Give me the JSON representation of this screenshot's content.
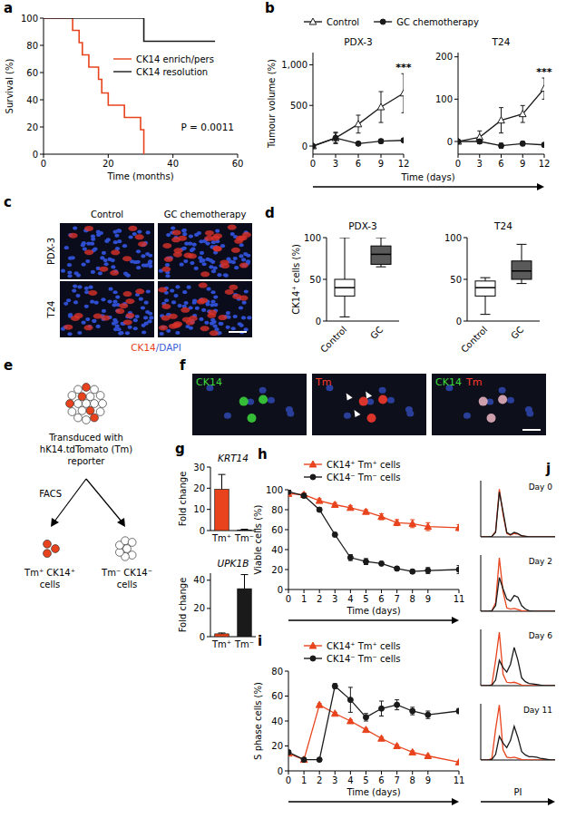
{
  "chart_data": [
    {
      "panel": "a",
      "type": "step",
      "xlabel": "Time (months)",
      "ylabel": "Survival (%)",
      "xlim": [
        0,
        60
      ],
      "xticks": [
        0,
        20,
        40,
        60
      ],
      "ylim": [
        0,
        100
      ],
      "yticks": [
        0,
        20,
        40,
        60,
        80,
        100
      ],
      "legend": "center",
      "annotation": "P = 0.0011",
      "series": [
        {
          "name": "CK14 enrich/pers",
          "color": "#e8431c",
          "x": [
            0,
            9,
            11,
            12,
            14,
            17,
            18,
            20,
            25,
            30,
            31
          ],
          "values": [
            100,
            91,
            82,
            73,
            64,
            55,
            45,
            36,
            27,
            18,
            0
          ]
        },
        {
          "name": "CK14 resolution",
          "color": "#1a1a1a",
          "x": [
            0,
            31,
            53
          ],
          "values": [
            100,
            83,
            83
          ]
        }
      ]
    },
    {
      "panel": "b",
      "type": "line",
      "title": "PDX-3",
      "ylabel": "Tumour volume (%)",
      "xlabel": "Time (days)",
      "x": [
        0,
        3,
        6,
        9,
        12
      ],
      "xlim": [
        0,
        12
      ],
      "xticks": [
        0,
        3,
        6,
        9,
        12
      ],
      "ylim": [
        -100,
        1150
      ],
      "yticks": [
        0,
        500,
        {
          "value": 1000,
          "label": "1,000"
        }
      ],
      "legend": "top",
      "annotation": "***",
      "series": [
        {
          "name": "Control",
          "color": "#1a1a1a",
          "marker": "triangle-open",
          "values": [
            0,
            100,
            270,
            480,
            650
          ],
          "errors": [
            0,
            60,
            110,
            190,
            240
          ]
        },
        {
          "name": "GC chemotherapy",
          "color": "#1a1a1a",
          "marker": "circle",
          "values": [
            0,
            100,
            30,
            60,
            70
          ],
          "errors": [
            0,
            70,
            20,
            25,
            20
          ]
        }
      ]
    },
    {
      "type": "line",
      "title": "T24",
      "x": [
        0,
        3,
        6,
        9,
        12
      ],
      "xlim": [
        0,
        12
      ],
      "xticks": [
        0,
        3,
        6,
        9,
        12
      ],
      "ylim": [
        -30,
        210
      ],
      "yticks": [
        0,
        100,
        200
      ],
      "annotation": "***",
      "series": [
        {
          "color": "#1a1a1a",
          "marker": "triangle-open",
          "values": [
            0,
            10,
            50,
            65,
            125
          ],
          "errors": [
            0,
            15,
            30,
            20,
            25
          ]
        },
        {
          "color": "#1a1a1a",
          "marker": "circle",
          "values": [
            0,
            0,
            -10,
            -5,
            -8
          ],
          "errors": [
            0,
            5,
            6,
            5,
            5
          ]
        }
      ]
    },
    {
      "panel": "d",
      "type": "box",
      "title": "PDX-3",
      "ylabel": "CK14⁺ cells (%)",
      "categories": [
        "Control",
        "GC"
      ],
      "colors": [
        "#ffffff",
        "#5a5a5a"
      ],
      "ylim": [
        0,
        100
      ],
      "yticks": [
        0,
        50,
        100
      ],
      "boxes": [
        {
          "min": 5,
          "q1": 30,
          "median": 40,
          "q3": 50,
          "max": 100
        },
        {
          "min": 65,
          "q1": 68,
          "median": 80,
          "q3": 90,
          "max": 100
        }
      ]
    },
    {
      "type": "box",
      "title": "T24",
      "categories": [
        "Control",
        "GC"
      ],
      "colors": [
        "#ffffff",
        "#5a5a5a"
      ],
      "ylim": [
        0,
        100
      ],
      "yticks": [
        0,
        50,
        100
      ],
      "boxes": [
        {
          "min": 8,
          "q1": 30,
          "median": 40,
          "q3": 48,
          "max": 52
        },
        {
          "min": 45,
          "q1": 50,
          "median": 60,
          "q3": 72,
          "max": 92
        }
      ]
    },
    {
      "panel": "g",
      "type": "bar",
      "title": "KRT14",
      "ylabel": "Fold change",
      "categories": [
        "Tm⁺",
        "Tm⁻"
      ],
      "colors": [
        "#e8431c",
        "#1a1a1a"
      ],
      "values": [
        19.5,
        0.3
      ],
      "errors": [
        7,
        0.3
      ],
      "ylim": [
        0,
        30
      ],
      "yticks": [
        0,
        10,
        20,
        30
      ]
    },
    {
      "type": "bar",
      "title": "UPK1B",
      "ylabel": "Fold change",
      "categories": [
        "Tm⁺",
        "Tm⁻"
      ],
      "colors": [
        "#e8431c",
        "#1a1a1a"
      ],
      "values": [
        2,
        34
      ],
      "errors": [
        0.6,
        10
      ],
      "ylim": [
        0,
        45
      ],
      "yticks": [
        0,
        20,
        40
      ]
    },
    {
      "panel": "h",
      "type": "line",
      "ylabel": "Viable cells (%)",
      "xlabel": "Time (days)",
      "x": [
        0,
        1,
        2,
        3,
        4,
        5,
        6,
        7,
        8,
        9,
        11
      ],
      "xlim": [
        0,
        11
      ],
      "xticks": [
        0,
        1,
        2,
        3,
        4,
        5,
        6,
        7,
        8,
        9,
        11
      ],
      "ylim": [
        0,
        100
      ],
      "yticks": [
        0,
        20,
        40,
        60,
        80,
        100
      ],
      "legend": "top",
      "series": [
        {
          "name": "CK14⁺ Tm⁺ cells",
          "color": "#e8431c",
          "marker": "triangle",
          "values": [
            96,
            95,
            89,
            85,
            82,
            78,
            73,
            67,
            66,
            63,
            62
          ],
          "errors": [
            2,
            2,
            2,
            2,
            2,
            2,
            3,
            3,
            4,
            4,
            3
          ]
        },
        {
          "name": "CK14⁻ Tm⁻ cells",
          "color": "#1a1a1a",
          "marker": "circle",
          "values": [
            98,
            94,
            80,
            55,
            32,
            28,
            26,
            21,
            18,
            19,
            20
          ],
          "errors": [
            2,
            2,
            2,
            2,
            3,
            3,
            2,
            2,
            2,
            3,
            4
          ]
        }
      ]
    },
    {
      "panel": "i",
      "type": "line",
      "ylabel": "S phase cells (%)",
      "xlabel": "Time (days)",
      "x": [
        0,
        1,
        2,
        3,
        4,
        5,
        6,
        7,
        8,
        9,
        11
      ],
      "xlim": [
        0,
        11
      ],
      "xticks": [
        0,
        1,
        2,
        3,
        4,
        5,
        6,
        7,
        8,
        9,
        11
      ],
      "ylim": [
        0,
        80
      ],
      "yticks": [
        0,
        20,
        40,
        60,
        80
      ],
      "legend": "top",
      "series": [
        {
          "name": "CK14⁺ Tm⁺ cells",
          "color": "#e8431c",
          "marker": "triangle",
          "values": [
            14,
            9,
            53,
            46,
            40,
            33,
            26,
            20,
            15,
            12,
            7
          ],
          "errors": [
            1,
            1,
            1,
            1,
            1,
            1,
            1,
            1,
            1,
            1,
            1
          ]
        },
        {
          "name": "CK14⁻ Tm⁻ cells",
          "color": "#1a1a1a",
          "marker": "circle",
          "values": [
            15,
            9,
            9,
            68,
            57,
            43,
            50,
            53,
            48,
            45,
            48
          ],
          "errors": [
            1,
            1,
            1,
            2,
            10,
            3,
            6,
            4,
            3,
            3,
            2
          ]
        }
      ]
    },
    {
      "panel": "j",
      "type": "line",
      "title": "Day 0",
      "x": [
        0,
        5,
        10,
        15,
        20,
        25,
        30,
        35,
        40,
        45,
        50,
        55,
        60,
        65,
        70,
        75,
        80,
        85,
        90,
        95,
        100
      ],
      "xlim": [
        0,
        100
      ],
      "ylim": [
        0,
        100
      ],
      "tick_labels": false,
      "series": [
        {
          "color": "#e8431c",
          "values": [
            0,
            0,
            0,
            1,
            10,
            85,
            40,
            6,
            3,
            6,
            5,
            2,
            1,
            0,
            0,
            0,
            0,
            0,
            0,
            0,
            0
          ]
        },
        {
          "color": "#1a1a1a",
          "values": [
            0,
            0,
            0,
            1,
            8,
            80,
            45,
            8,
            4,
            8,
            6,
            2,
            1,
            0,
            0,
            0,
            0,
            0,
            0,
            0,
            0
          ]
        }
      ]
    },
    {
      "type": "line",
      "title": "Day 2",
      "x": [
        0,
        5,
        10,
        15,
        20,
        25,
        30,
        35,
        40,
        45,
        50,
        55,
        60,
        65,
        70,
        75,
        80,
        85,
        90,
        95,
        100
      ],
      "xlim": [
        0,
        100
      ],
      "ylim": [
        0,
        100
      ],
      "tick_labels": false,
      "series": [
        {
          "color": "#e8431c",
          "values": [
            0,
            0,
            0,
            1,
            15,
            95,
            35,
            6,
            4,
            5,
            3,
            1,
            0,
            0,
            0,
            0,
            0,
            0,
            0,
            0,
            0
          ]
        },
        {
          "color": "#1a1a1a",
          "values": [
            0,
            0,
            0,
            1,
            10,
            60,
            40,
            22,
            18,
            28,
            25,
            10,
            4,
            1,
            0,
            0,
            0,
            0,
            0,
            0,
            0
          ]
        }
      ]
    },
    {
      "type": "line",
      "title": "Day 6",
      "x": [
        0,
        5,
        10,
        15,
        20,
        25,
        30,
        35,
        40,
        45,
        50,
        55,
        60,
        65,
        70,
        75,
        80,
        85,
        90,
        95,
        100
      ],
      "xlim": [
        0,
        100
      ],
      "ylim": [
        0,
        100
      ],
      "tick_labels": false,
      "series": [
        {
          "color": "#e8431c",
          "values": [
            0,
            0,
            0,
            2,
            45,
            95,
            20,
            6,
            5,
            6,
            4,
            1,
            0,
            0,
            0,
            0,
            0,
            0,
            0,
            0,
            0
          ]
        },
        {
          "color": "#1a1a1a",
          "values": [
            0,
            0,
            0,
            1,
            10,
            45,
            32,
            24,
            38,
            68,
            45,
            14,
            7,
            4,
            3,
            2,
            1,
            0,
            0,
            0,
            0
          ]
        }
      ]
    },
    {
      "type": "line",
      "title": "Day 11",
      "xlabel": "PI",
      "x": [
        0,
        5,
        10,
        15,
        20,
        25,
        30,
        35,
        40,
        45,
        50,
        55,
        60,
        65,
        70,
        75,
        80,
        85,
        90,
        95,
        100
      ],
      "xlim": [
        0,
        100
      ],
      "ylim": [
        0,
        100
      ],
      "tick_labels": false,
      "series": [
        {
          "color": "#e8431c",
          "values": [
            0,
            0,
            0,
            3,
            55,
            98,
            18,
            5,
            4,
            5,
            3,
            1,
            0,
            0,
            0,
            0,
            0,
            0,
            0,
            0,
            0
          ]
        },
        {
          "color": "#1a1a1a",
          "values": [
            0,
            0,
            0,
            1,
            10,
            42,
            30,
            22,
            35,
            60,
            40,
            15,
            9,
            6,
            6,
            5,
            3,
            2,
            1,
            0,
            0
          ]
        }
      ]
    }
  ],
  "figure": {
    "c": {
      "panel": "c",
      "columns": [
        "Control",
        "GC chemotherapy"
      ],
      "rows": [
        "PDX-3",
        "T24"
      ],
      "stain": [
        {
          "text": "CK14",
          "color": "#e8431c"
        },
        {
          "text": "/DAPI",
          "color": "#3b5fd6"
        }
      ]
    },
    "e": {
      "panel": "e",
      "source_text": [
        "Transduced with",
        "hK14.tdTomato (Tm)",
        "reporter"
      ],
      "method": "FACS",
      "outputs": [
        {
          "lines": [
            "Tm⁺ CK14⁺",
            "cells"
          ],
          "color": "#e8431c"
        },
        {
          "lines": [
            "Tm⁻ CK14⁻",
            "cells"
          ],
          "color": "#ffffff"
        }
      ]
    },
    "f": {
      "panel": "f",
      "images": [
        {
          "labels": [
            {
              "text": "CK14",
              "color": "#3ddc3d"
            }
          ]
        },
        {
          "labels": [
            {
              "text": "Tm",
              "color": "#ff3b2f"
            }
          ]
        },
        {
          "labels": [
            {
              "text": "CK14",
              "color": "#3ddc3d"
            },
            {
              "text": "Tm",
              "color": "#ff3b2f"
            }
          ]
        }
      ]
    }
  }
}
